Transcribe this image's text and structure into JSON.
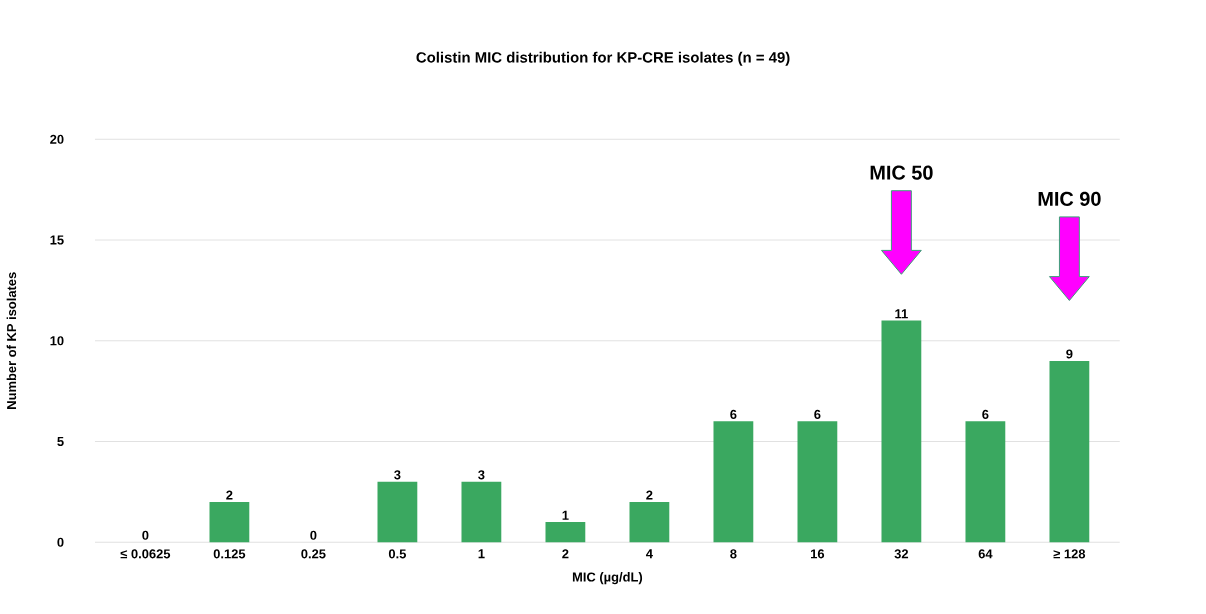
{
  "chart_data": {
    "type": "bar",
    "title": "Colistin MIC distribution for KP-CRE isolates (n = 49)",
    "xlabel": "MIC (µg/dL)",
    "ylabel": "Number of KP isolates",
    "categories": [
      "≤ 0.0625",
      "0.125",
      "0.25",
      "0.5",
      "1",
      "2",
      "4",
      "8",
      "16",
      "32",
      "64",
      "≥ 128"
    ],
    "values": [
      0,
      2,
      0,
      3,
      3,
      1,
      2,
      6,
      6,
      11,
      6,
      9
    ],
    "color": "#3aa860",
    "ylim": [
      0,
      20
    ],
    "yticks": [
      0,
      5,
      10,
      15,
      20
    ],
    "grid": "y",
    "data_labels": true,
    "annotations": [
      "MIC 50",
      "MIC 90"
    ]
  }
}
